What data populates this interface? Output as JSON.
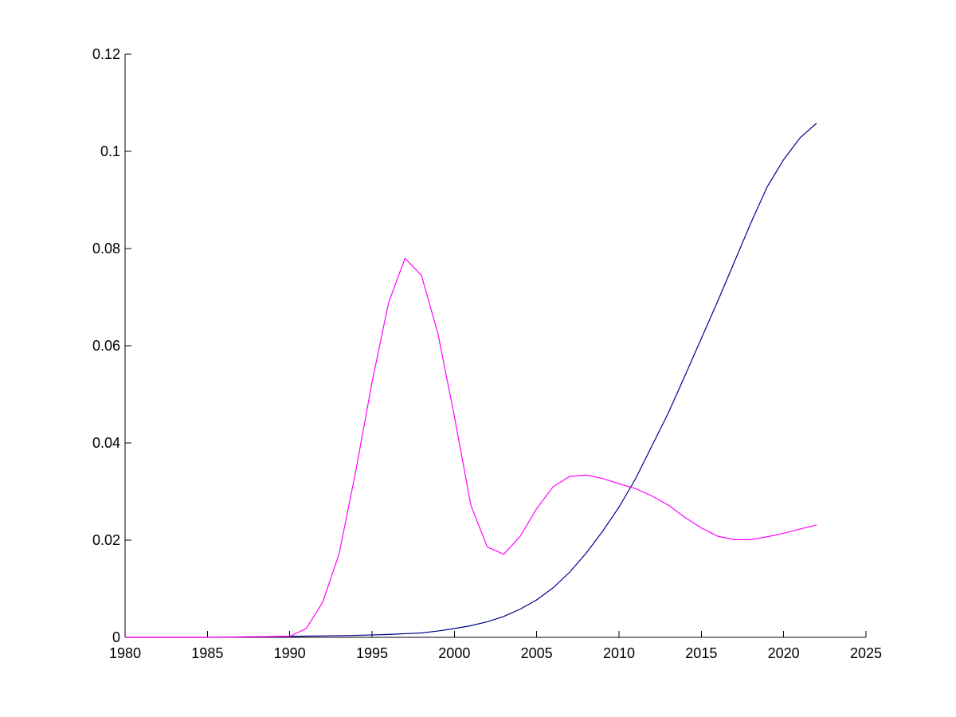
{
  "chart_data": {
    "type": "line",
    "title": "",
    "xlabel": "",
    "ylabel": "",
    "xlim": [
      1980,
      2025
    ],
    "ylim": [
      0,
      0.12
    ],
    "grid": false,
    "xticks": [
      1980,
      1985,
      1990,
      1995,
      2000,
      2005,
      2010,
      2015,
      2020,
      2025
    ],
    "yticks": [
      0,
      0.02,
      0.04,
      0.06,
      0.08,
      0.1,
      0.12
    ],
    "xtick_labels": [
      "1980",
      "1985",
      "1990",
      "1995",
      "2000",
      "2005",
      "2010",
      "2015",
      "2020",
      "2025"
    ],
    "ytick_labels": [
      "0",
      "0.02",
      "0.04",
      "0.06",
      "0.08",
      "0.1",
      "0.12"
    ],
    "series": [
      {
        "color": "#00008b",
        "x": [
          1980,
          1985,
          1990,
          1992,
          1994,
          1996,
          1998,
          1999,
          2000,
          2001,
          2002,
          2003,
          2004,
          2005,
          2006,
          2007,
          2008,
          2009,
          2010,
          2011,
          2012,
          2013,
          2014,
          2015,
          2016,
          2017,
          2018,
          2019,
          2020,
          2021,
          2022
        ],
        "y": [
          0,
          0,
          0.0002,
          0.0003,
          0.0004,
          0.0006,
          0.0009,
          0.0013,
          0.0018,
          0.0024,
          0.0032,
          0.0043,
          0.0058,
          0.0077,
          0.0102,
          0.0134,
          0.0173,
          0.0218,
          0.0268,
          0.0326,
          0.0394,
          0.0462,
          0.0538,
          0.0615,
          0.0692,
          0.0772,
          0.0852,
          0.0927,
          0.0983,
          0.1028,
          0.1058
        ]
      },
      {
        "color": "#ff00ff",
        "x": [
          1980,
          1985,
          1990,
          1991,
          1992,
          1993,
          1994,
          1995,
          1996,
          1997,
          1998,
          1999,
          2000,
          2001,
          2002,
          2003,
          2004,
          2005,
          2006,
          2007,
          2008,
          2009,
          2010,
          2011,
          2012,
          2013,
          2014,
          2015,
          2016,
          2017,
          2018,
          2019,
          2020,
          2021,
          2022
        ],
        "y": [
          0,
          0,
          0.0002,
          0.0018,
          0.0072,
          0.0172,
          0.034,
          0.0525,
          0.0688,
          0.078,
          0.0745,
          0.0625,
          0.0455,
          0.0272,
          0.0186,
          0.0171,
          0.0208,
          0.0265,
          0.031,
          0.0331,
          0.0334,
          0.0327,
          0.0316,
          0.0306,
          0.0291,
          0.0272,
          0.0247,
          0.0225,
          0.0208,
          0.0201,
          0.0201,
          0.0207,
          0.0214,
          0.0223,
          0.0231
        ]
      }
    ]
  }
}
